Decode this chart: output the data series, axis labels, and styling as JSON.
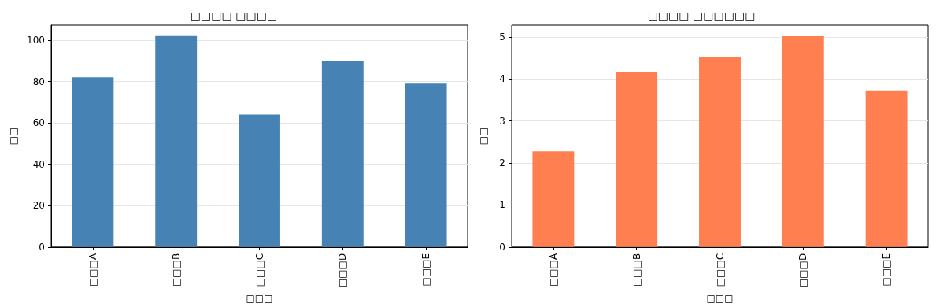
{
  "chart_data": [
    {
      "type": "bar",
      "title": "□□□□ □□□□",
      "xlabel": "□□□",
      "ylabel": "□□",
      "categories": [
        "□□□A",
        "□□□B",
        "□□□C",
        "□□□D",
        "□□□E"
      ],
      "values": [
        82,
        102,
        64,
        90,
        79
      ],
      "color": "#4682b4",
      "ylim": [
        0,
        107.2
      ],
      "yticks": [
        0,
        20,
        40,
        60,
        80,
        100
      ],
      "grid": "y"
    },
    {
      "type": "bar",
      "title": "□□□□ □□□□□□",
      "xlabel": "□□□",
      "ylabel": "□□",
      "categories": [
        "□□□A",
        "□□□B",
        "□□□C",
        "□□□D",
        "□□□E"
      ],
      "values": [
        2.28,
        4.16,
        4.53,
        5.02,
        3.73
      ],
      "color": "#ff7f50",
      "ylim": [
        0,
        5.28
      ],
      "yticks": [
        0,
        1,
        2,
        3,
        4,
        5
      ],
      "grid": "y"
    }
  ]
}
